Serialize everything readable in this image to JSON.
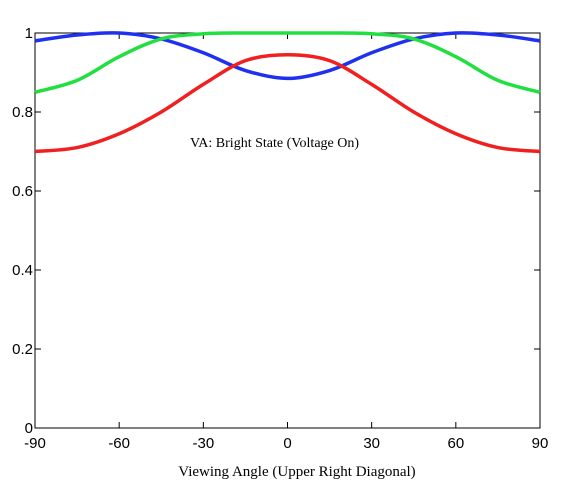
{
  "chart_data": {
    "type": "line",
    "title": "",
    "xlabel": "Viewing Angle (Upper Right Diagonal)",
    "ylabel": "",
    "xlim": [
      -90,
      90
    ],
    "ylim": [
      0,
      1
    ],
    "xticks": [
      -90,
      -60,
      -30,
      0,
      30,
      60,
      90
    ],
    "xtick_labels": [
      "-90",
      "-60",
      "-30",
      "0",
      "30",
      "60",
      "90"
    ],
    "yticks": [
      0,
      0.2,
      0.4,
      0.6,
      0.8,
      1
    ],
    "ytick_labels": [
      "0",
      "0.2",
      "0.4",
      "0.6",
      "0.8",
      "1"
    ],
    "annotation": "VA: Bright State (Voltage On)",
    "grid": false,
    "x": [
      -90,
      -75,
      -60,
      -45,
      -30,
      -15,
      0,
      15,
      30,
      45,
      60,
      75,
      90
    ],
    "series": [
      {
        "color": "#2030f0",
        "values": [
          0.98,
          0.995,
          1.0,
          0.985,
          0.95,
          0.905,
          0.885,
          0.905,
          0.95,
          0.985,
          1.0,
          0.995,
          0.98
        ]
      },
      {
        "color": "#20e040",
        "values": [
          0.85,
          0.88,
          0.94,
          0.985,
          0.998,
          1.0,
          1.0,
          1.0,
          0.998,
          0.985,
          0.94,
          0.88,
          0.85
        ]
      },
      {
        "color": "#f02020",
        "values": [
          0.7,
          0.71,
          0.745,
          0.8,
          0.87,
          0.93,
          0.945,
          0.93,
          0.87,
          0.8,
          0.745,
          0.71,
          0.7
        ]
      }
    ]
  }
}
